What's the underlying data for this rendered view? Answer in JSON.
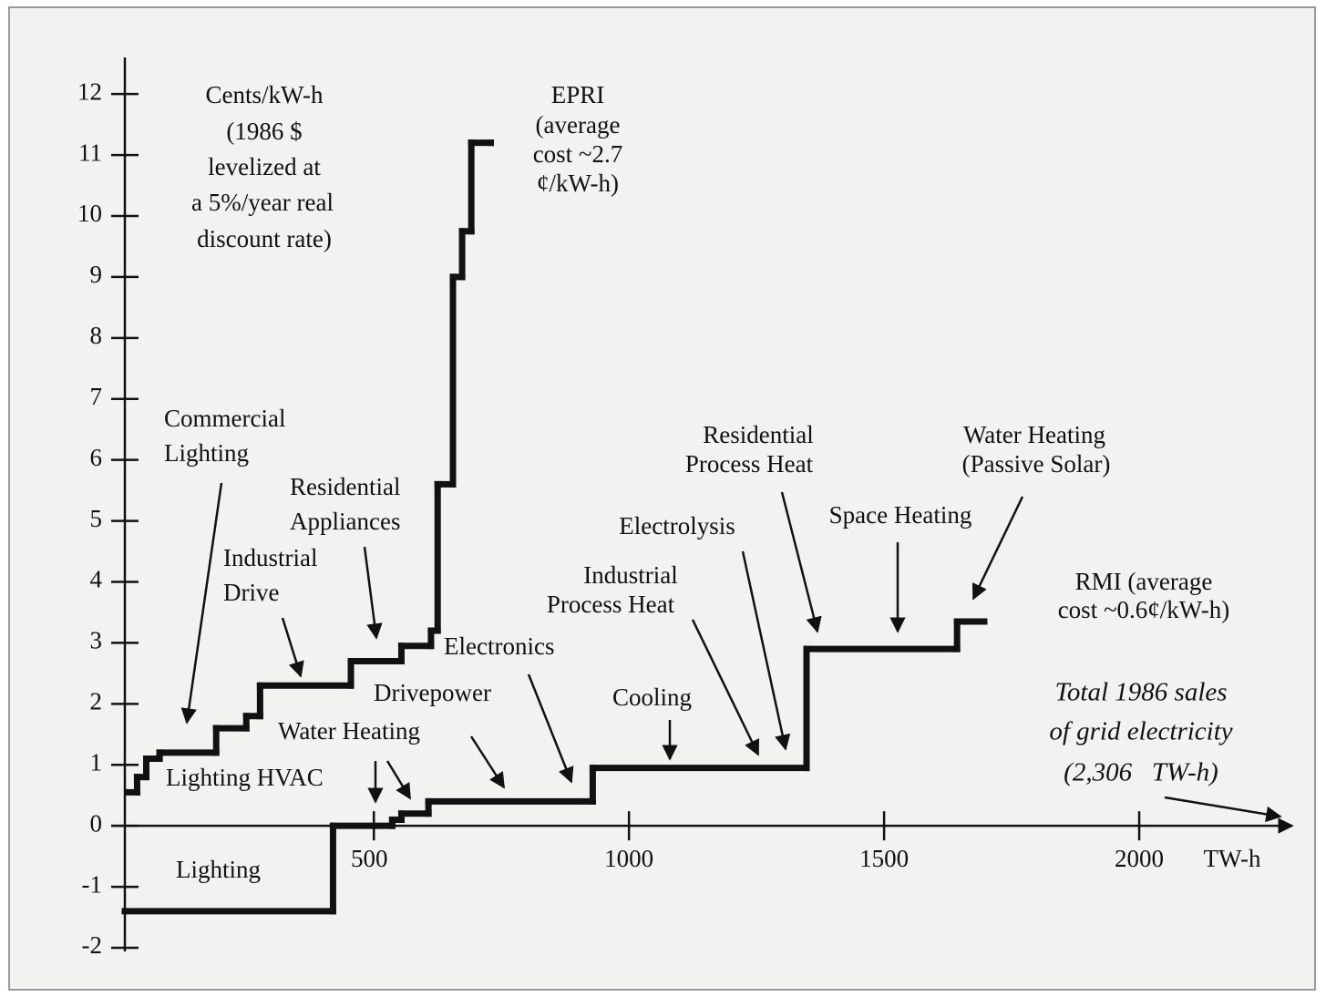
{
  "chart_data": {
    "type": "step",
    "ylabel_lines": [
      "Cents/kW-h",
      "(1986 $",
      "levelized at",
      "a 5%/year real",
      "discount rate)"
    ],
    "xlabel": "TW-h",
    "xlim": [
      12,
      2300
    ],
    "ylim": [
      -2,
      12.6
    ],
    "xticks": [
      500,
      1000,
      1500,
      2000
    ],
    "yticks": [
      -2,
      -1,
      0,
      1,
      2,
      3,
      4,
      5,
      6,
      7,
      8,
      9,
      10,
      11,
      12
    ],
    "series": [
      {
        "name": "EPRI",
        "color": "#111111",
        "x": [
          18,
          36,
          54,
          80,
          191,
          250,
          277,
          455,
          554,
          612,
          625,
          655,
          673,
          691,
          729
        ],
        "values": [
          0.55,
          0.8,
          1.1,
          1.2,
          1.6,
          1.8,
          2.3,
          2.7,
          2.95,
          3.2,
          5.6,
          9.0,
          9.75,
          11.2,
          11.2
        ]
      },
      {
        "name": "RMI",
        "color": "#111111",
        "x": [
          12,
          420,
          536,
          554,
          607,
          929,
          1348,
          1643,
          1696
        ],
        "values": [
          -1.4,
          0,
          0.1,
          0.2,
          0.4,
          0.95,
          2.9,
          3.35,
          3.35
        ]
      }
    ],
    "annotations": {
      "epri_note": [
        "(average",
        "cost ~2.7",
        "¢/kW-h)"
      ],
      "rmi_note": [
        " (average",
        "cost ~0.6¢/kW-h)"
      ],
      "commercial_lighting": [
        "Commercial",
        "Lighting"
      ],
      "residential_appliances": [
        "Residential",
        "Appliances"
      ],
      "industrial_drive": [
        "Industrial",
        "Drive"
      ],
      "electronics": [
        "Electronics"
      ],
      "drivepower": [
        "Drivepower"
      ],
      "water_heating": [
        "Water Heating"
      ],
      "lighting_hvac": [
        "Lighting HVAC"
      ],
      "lighting": [
        "Lighting"
      ],
      "cooling": [
        "Cooling"
      ],
      "industrial_process_heat": [
        "Industrial",
        "Process Heat"
      ],
      "electrolysis": [
        "Electrolysis"
      ],
      "residential_process_heat": [
        "Residential",
        "Process Heat"
      ],
      "space_heating": [
        "Space Heating"
      ],
      "water_heating_solar": [
        "Water Heating",
        "(Passive Solar)"
      ],
      "total_sales": [
        "Total 1986 sales",
        "of grid electricity",
        "(2,306   TW-h)"
      ]
    }
  }
}
